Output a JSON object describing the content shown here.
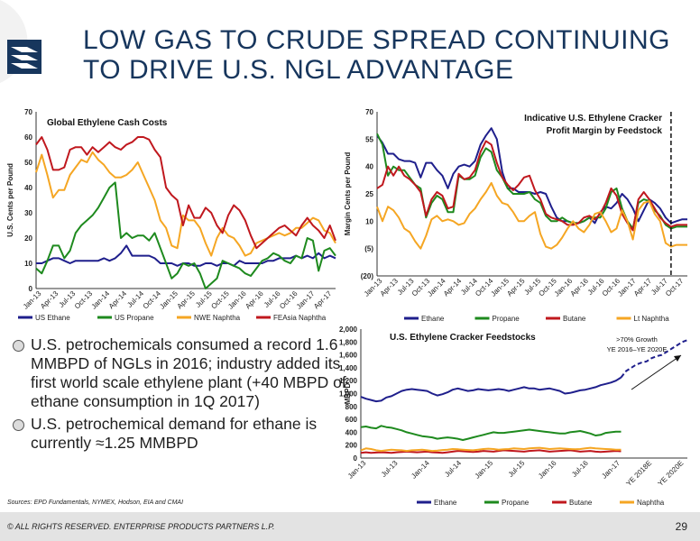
{
  "title": {
    "line1": "LOW GAS TO CRUDE SPREAD CONTINUING",
    "line2": "TO DRIVE U.S. NGL ADVANTAGE"
  },
  "colors": {
    "title": "#17365d",
    "ethane": "#1f1f8c",
    "propane": "#1e8a1e",
    "naphtha": "#f5a623",
    "feasia_naphtha": "#c0181e",
    "butane": "#c0181e",
    "projection": "#1f1f8c"
  },
  "bullets": [
    "U.S. petrochemicals consumed a record 1.6 MMBPD of NGLs in 2016; industry added its first world scale ethylene plant (+40 MBPD of ethane consumption in 1Q 2017)",
    "U.S. petrochemical demand for ethane is currently ≈1.25 MMBPD"
  ],
  "sources": "Sources:  EPD Fundamentals, NYMEX, Hodson, EIA and CMAI",
  "footer": {
    "copyright": "© ALL RIGHTS RESERVED. ENTERPRISE PRODUCTS PARTNERS L.P.",
    "page_number": "29"
  },
  "chart_data": [
    {
      "type": "line",
      "title": "Global Ethylene Cash Costs",
      "ylabel": "U.S. Cents per Pound",
      "ylim": [
        0,
        70
      ],
      "yticks": [
        0,
        10,
        20,
        30,
        40,
        50,
        60,
        70
      ],
      "x_tick_labels": [
        "Jan-13",
        "Apr-13",
        "Jul-13",
        "Oct-13",
        "Jan-14",
        "Apr-14",
        "Jul-14",
        "Oct-14",
        "Jan-15",
        "Apr-15",
        "Jul-15",
        "Oct-15",
        "Jan-16",
        "Apr-16",
        "Jul-16",
        "Oct-16",
        "Jan-17",
        "Apr-17"
      ],
      "legend_position": "bottom",
      "series": [
        {
          "name": "US Ethane",
          "color_key": "ethane",
          "values": [
            10,
            10,
            11,
            12,
            12,
            11,
            10,
            11,
            11,
            11,
            11,
            11,
            12,
            11,
            12,
            14,
            17,
            13,
            13,
            13,
            13,
            12,
            10,
            10,
            10,
            9,
            10,
            10,
            9,
            9,
            10,
            10,
            9,
            10,
            10,
            9,
            11,
            10,
            10,
            10,
            10,
            11,
            11,
            12,
            12,
            12,
            13,
            12,
            13,
            12,
            14,
            12,
            13,
            12
          ]
        },
        {
          "name": "US Propane",
          "color_key": "propane",
          "values": [
            8,
            6,
            11,
            17,
            17,
            12,
            15,
            22,
            25,
            27,
            29,
            32,
            36,
            40,
            42,
            20,
            22,
            20,
            21,
            21,
            19,
            22,
            16,
            10,
            4,
            6,
            10,
            9,
            10,
            6,
            0,
            2,
            4,
            11,
            10,
            9,
            8,
            6,
            5,
            8,
            11,
            12,
            14,
            13,
            11,
            10,
            13,
            12,
            20,
            19,
            7,
            15,
            16,
            13
          ]
        },
        {
          "name": "NWE Naphtha",
          "color_key": "naphtha",
          "values": [
            46,
            53,
            45,
            36,
            39,
            39,
            45,
            48,
            51,
            50,
            54,
            51,
            49,
            46,
            44,
            44,
            45,
            47,
            50,
            45,
            40,
            35,
            27,
            24,
            17,
            16,
            29,
            27,
            27,
            24,
            18,
            13,
            20,
            24,
            21,
            20,
            17,
            13,
            14,
            18,
            19,
            20,
            21,
            22,
            21,
            22,
            24,
            24,
            26,
            28,
            27,
            23,
            22,
            18
          ]
        },
        {
          "name": "FEAsia Naphtha",
          "color_key": "feasia_naphtha",
          "values": [
            57,
            60,
            55,
            47,
            47,
            48,
            55,
            56,
            56,
            53,
            56,
            54,
            56,
            58,
            56,
            55,
            57,
            58,
            60,
            60,
            59,
            55,
            52,
            40,
            37,
            35,
            25,
            33,
            28,
            28,
            32,
            30,
            25,
            22,
            29,
            33,
            31,
            27,
            21,
            16,
            18,
            20,
            22,
            24,
            25,
            23,
            21,
            25,
            28,
            25,
            23,
            20,
            25,
            19
          ]
        }
      ]
    },
    {
      "type": "line",
      "title": "Indicative U.S. Ethylene Cracker Profit Margin by Feedstock",
      "title_line1": "Indicative U.S. Ethylene Cracker",
      "title_line2": "Profit Margin by Feedstock",
      "ylabel": "Margin Cents per Pound",
      "ylim": [
        -20,
        70
      ],
      "yticks": [
        70,
        55,
        40,
        25,
        10,
        -5,
        -20
      ],
      "ytick_labels": [
        "70",
        "55",
        "40",
        "25",
        "10",
        "(5)",
        "(20)"
      ],
      "x_tick_labels": [
        "Jan-13",
        "Apr-13",
        "Jul-13",
        "Oct-13",
        "Jan-14",
        "Apr-14",
        "Jul-14",
        "Oct-14",
        "Jan-15",
        "Apr-15",
        "Jul-15",
        "Oct-15",
        "Jan-16",
        "Apr-16",
        "Jul-16",
        "Oct-16",
        "Jan-17",
        "Apr-17",
        "Jul-17",
        "Oct-17"
      ],
      "legend_position": "bottom",
      "projection_start_index": 54,
      "series": [
        {
          "name": "Ethane",
          "color_key": "ethane",
          "values": [
            57,
            53,
            47,
            47,
            44,
            43,
            43,
            42,
            34,
            42,
            42,
            38,
            35,
            28,
            36,
            40,
            41,
            40,
            43,
            52,
            57,
            61,
            55,
            37,
            28,
            28,
            26,
            26,
            26,
            25,
            26,
            25,
            18,
            12,
            10,
            10,
            9,
            9,
            10,
            12,
            9,
            15,
            18,
            17,
            20,
            25,
            22,
            17,
            10,
            16,
            22,
            20,
            17,
            12,
            9,
            10,
            11,
            11
          ]
        },
        {
          "name": "Propane",
          "color_key": "propane",
          "values": [
            58,
            52,
            35,
            40,
            38,
            38,
            34,
            30,
            28,
            12,
            20,
            24,
            22,
            15,
            15,
            35,
            33,
            33,
            35,
            45,
            50,
            48,
            38,
            34,
            28,
            25,
            25,
            25,
            26,
            22,
            20,
            13,
            10,
            10,
            12,
            10,
            9,
            9,
            10,
            12,
            12,
            12,
            17,
            26,
            28,
            17,
            10,
            6,
            20,
            22,
            21,
            16,
            13,
            8,
            6,
            7,
            7,
            7
          ]
        },
        {
          "name": "Butane",
          "color_key": "butane",
          "values": [
            28,
            30,
            40,
            35,
            40,
            35,
            33,
            30,
            26,
            13,
            22,
            26,
            24,
            17,
            18,
            36,
            33,
            34,
            38,
            48,
            54,
            52,
            42,
            34,
            30,
            27,
            30,
            34,
            35,
            27,
            22,
            14,
            12,
            11,
            10,
            8,
            8,
            9,
            12,
            13,
            11,
            14,
            20,
            28,
            24,
            14,
            9,
            5,
            22,
            26,
            22,
            17,
            12,
            9,
            7,
            8,
            8,
            8
          ]
        },
        {
          "name": "Lt Naphtha",
          "color_key": "naphtha",
          "values": [
            18,
            10,
            18,
            16,
            12,
            6,
            4,
            -1,
            -5,
            2,
            11,
            13,
            10,
            11,
            10,
            8,
            9,
            14,
            17,
            22,
            26,
            31,
            24,
            20,
            19,
            15,
            10,
            10,
            13,
            15,
            3,
            -4,
            -5,
            -3,
            1,
            6,
            10,
            6,
            4,
            8,
            14,
            15,
            10,
            4,
            6,
            16,
            10,
            0,
            16,
            20,
            21,
            14,
            10,
            -2,
            -4,
            -3,
            -3,
            -3
          ]
        }
      ]
    },
    {
      "type": "line",
      "title": "U.S. Ethylene Cracker Feedstocks",
      "annotation_line1": ">70% Growth",
      "annotation_line2": "YE 2016–YE 2020E",
      "ylabel": "MBPD",
      "ylim": [
        0,
        2000
      ],
      "yticks": [
        0,
        200,
        400,
        600,
        800,
        1000,
        1200,
        1400,
        1600,
        1800,
        2000
      ],
      "ytick_labels": [
        "0",
        "200",
        "400",
        "600",
        "800",
        "1,000",
        "1,200",
        "1,400",
        "1,600",
        "1,800",
        "2,000"
      ],
      "x_tick_labels": [
        "Jan-13",
        "Jul-13",
        "Jan-14",
        "Jul-14",
        "Jan-15",
        "Jul-15",
        "Jan-16",
        "Jul-16",
        "Jan-17",
        "YE 2018E",
        "YE 2020E"
      ],
      "legend_position": "bottom",
      "series": [
        {
          "name": "Ethane",
          "color_key": "ethane",
          "values": [
            950,
            920,
            900,
            880,
            890,
            940,
            960,
            1000,
            1040,
            1060,
            1070,
            1060,
            1050,
            1040,
            1000,
            970,
            990,
            1020,
            1060,
            1080,
            1060,
            1040,
            1050,
            1070,
            1060,
            1050,
            1060,
            1070,
            1060,
            1040,
            1060,
            1080,
            1100,
            1080,
            1080,
            1060,
            1070,
            1080,
            1060,
            1040,
            1000,
            1010,
            1030,
            1050,
            1060,
            1080,
            1100,
            1130,
            1150,
            1170,
            1200,
            1250
          ]
        },
        {
          "name": "Ethane Projection",
          "color_key": "projection",
          "dashed": true,
          "values": [
            1250,
            1350,
            1400,
            1450,
            1480,
            1500,
            1550,
            1580,
            1600,
            1650,
            1700,
            1750,
            1800,
            1830
          ]
        },
        {
          "name": "Propane",
          "color_key": "propane",
          "values": [
            480,
            490,
            470,
            460,
            500,
            480,
            470,
            450,
            430,
            400,
            380,
            360,
            340,
            330,
            320,
            300,
            310,
            320,
            310,
            300,
            280,
            300,
            320,
            340,
            360,
            380,
            400,
            390,
            390,
            400,
            410,
            420,
            430,
            440,
            430,
            420,
            410,
            400,
            390,
            380,
            380,
            400,
            410,
            420,
            400,
            380,
            350,
            360,
            390,
            400,
            410,
            410
          ]
        },
        {
          "name": "Butane",
          "color_key": "butane",
          "values": [
            80,
            90,
            80,
            85,
            90,
            85,
            80,
            90,
            95,
            100,
            95,
            90,
            95,
            100,
            90,
            85,
            80,
            90,
            100,
            110,
            105,
            100,
            95,
            100,
            110,
            105,
            100,
            110,
            120,
            115,
            110,
            105,
            100,
            110,
            115,
            120,
            110,
            100,
            105,
            110,
            115,
            120,
            110,
            100,
            105,
            110,
            100,
            95,
            100,
            105,
            110,
            105
          ]
        },
        {
          "name": "Naphtha",
          "color_key": "naphtha",
          "values": [
            120,
            150,
            140,
            120,
            110,
            120,
            130,
            125,
            120,
            110,
            120,
            125,
            130,
            120,
            110,
            115,
            125,
            130,
            140,
            135,
            130,
            125,
            120,
            130,
            140,
            145,
            140,
            130,
            135,
            140,
            150,
            145,
            140,
            150,
            155,
            160,
            150,
            140,
            145,
            150,
            145,
            140,
            135,
            140,
            150,
            160,
            150,
            145,
            140,
            135,
            130,
            130
          ]
        }
      ]
    }
  ]
}
